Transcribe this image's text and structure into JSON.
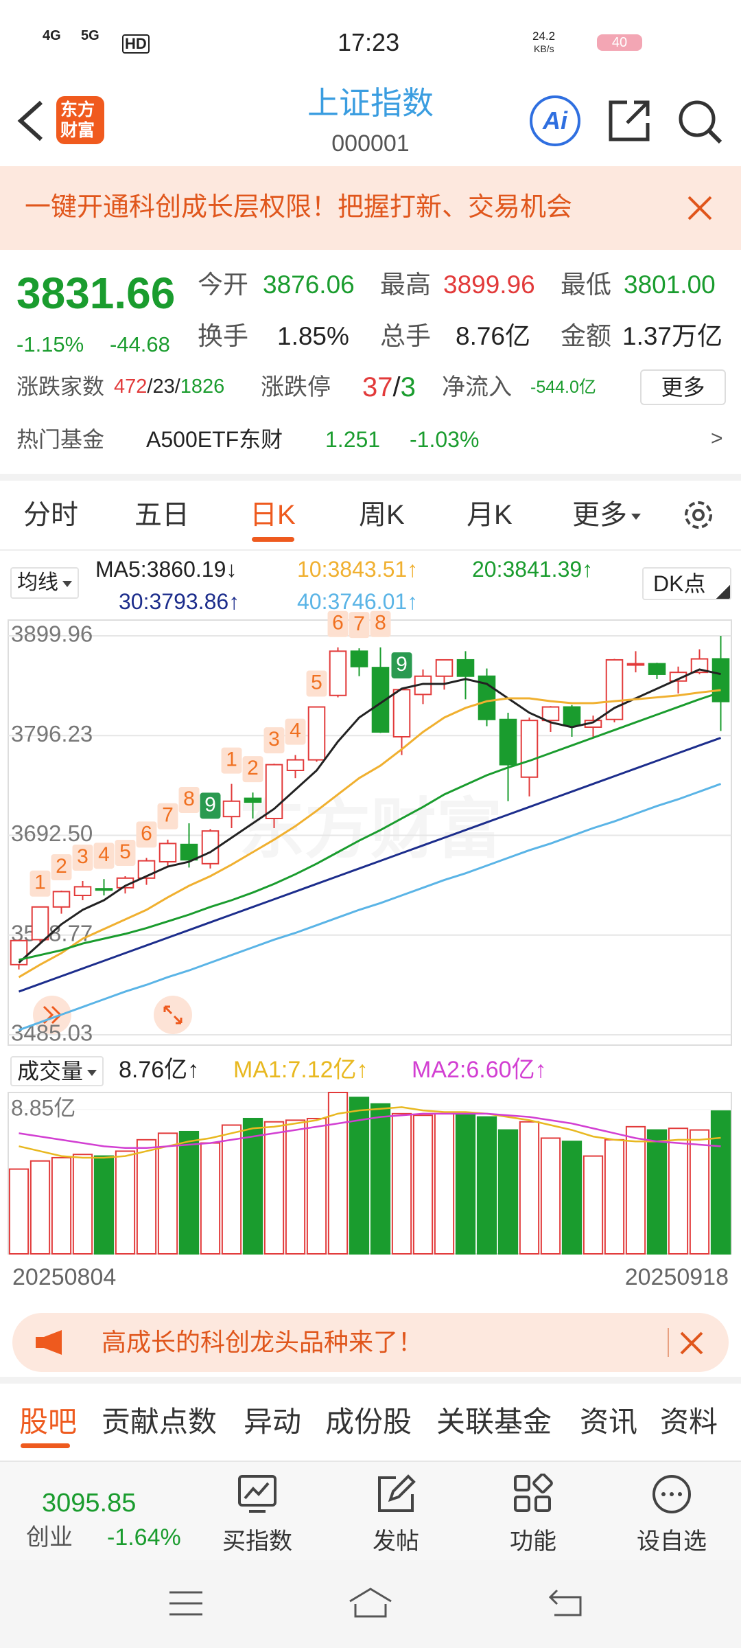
{
  "status_bar": {
    "signal_1": "4G",
    "signal_2": "5G",
    "hd": "HD",
    "time": "17:23",
    "speed": "24.2",
    "speed_unit": "KB/s",
    "battery": "40"
  },
  "header": {
    "logo_line_1": "东方",
    "logo_line_2": "财富",
    "title": "上证指数",
    "code": "000001",
    "ai": "Ai"
  },
  "banner": {
    "text": "一键开通科创成长层权限！把握打新、交易机会"
  },
  "quote": {
    "price": "3831.66",
    "change_pct": "-1.15%",
    "change": "-44.68",
    "stats": [
      {
        "label": "今开",
        "value": "3876.06"
      },
      {
        "label": "最高",
        "value": "3899.96"
      },
      {
        "label": "最低",
        "value": "3801.00"
      },
      {
        "label": "换手",
        "value": "1.85%"
      },
      {
        "label": "总手",
        "value": "8.76亿"
      },
      {
        "label": "金额",
        "value": "1.37万亿"
      }
    ],
    "breadth": {
      "label": "涨跌家数",
      "up": "472",
      "flat": "23",
      "down": "1826",
      "separator": "/"
    },
    "limit": {
      "label": "涨跌停",
      "up": "37",
      "down": "3",
      "separator": "/"
    },
    "net_inflow": {
      "label": "净流入",
      "value": "-544.0亿"
    },
    "more": "更多",
    "fund": {
      "label": "热门基金",
      "name": "A500ETF东财",
      "price": "1.251",
      "change": "-1.03%",
      "arrow": ">"
    }
  },
  "tabs": {
    "items": [
      "分时",
      "五日",
      "日K",
      "周K",
      "月K",
      "更多"
    ],
    "active": 2
  },
  "ma_legend": {
    "selector": "均线",
    "dk": "DK点"
  },
  "chart_data": [
    {
      "type": "candlestick",
      "categories": [
        "20250804",
        null,
        null,
        null,
        null,
        null,
        null,
        null,
        null,
        null,
        null,
        null,
        null,
        null,
        null,
        null,
        null,
        null,
        null,
        null,
        null,
        null,
        null,
        null,
        null,
        null,
        null,
        null,
        null,
        null,
        null,
        null,
        null,
        "20250918"
      ],
      "open": [
        3558,
        3584,
        3618,
        3630,
        3637,
        3638,
        3648,
        3665,
        3683,
        3663,
        3712,
        3731,
        3710,
        3760,
        3771,
        3838,
        3884,
        3867,
        3795,
        3839,
        3858,
        3875,
        3858,
        3813,
        3753,
        3812,
        3826,
        3805,
        3813,
        3871,
        3871,
        3853,
        3862,
        3876.06
      ],
      "high": [
        3584,
        3618,
        3635,
        3645,
        3647,
        3650,
        3669,
        3688,
        3705,
        3699,
        3746,
        3737,
        3767,
        3776,
        3826,
        3888,
        3887,
        3888,
        3845,
        3865,
        3875,
        3884,
        3866,
        3820,
        3815,
        3827,
        3828,
        3817,
        3876,
        3884,
        3872,
        3868,
        3886,
        3899.96
      ],
      "low": [
        3553,
        3580,
        3611,
        3625,
        3630,
        3632,
        3641,
        3660,
        3659,
        3658,
        3700,
        3710,
        3700,
        3752,
        3769,
        3836,
        3858,
        3799,
        3776,
        3829,
        3844,
        3834,
        3806,
        3728,
        3733,
        3800,
        3795,
        3795,
        3810,
        3862,
        3855,
        3840,
        3860,
        3801.0
      ],
      "close": [
        3583,
        3618,
        3634,
        3639,
        3636,
        3648,
        3666,
        3684,
        3667,
        3697,
        3728,
        3727,
        3766,
        3771,
        3826,
        3884,
        3868,
        3800,
        3844,
        3858,
        3875,
        3858,
        3813,
        3766,
        3812,
        3826,
        3807,
        3812,
        3875,
        3871,
        3860,
        3862,
        3876,
        3831.66
      ],
      "up_color": "#e23a3a",
      "down_color": "#1a9c2e",
      "ylim": [
        3485.03,
        3899.96
      ],
      "yticks": [
        3485.03,
        3588.77,
        {
          "value": 3692.5,
          "label": "3692.50"
        },
        3796.23,
        3899.96
      ],
      "ma": [
        {
          "label": "MA5:3860.19↓",
          "color": "#222222",
          "values": [
            3560,
            3580,
            3600,
            3615,
            3625,
            3640,
            3650,
            3660,
            3665,
            3675,
            3690,
            3705,
            3720,
            3740,
            3760,
            3790,
            3815,
            3830,
            3845,
            3850,
            3850,
            3855,
            3850,
            3835,
            3820,
            3810,
            3805,
            3810,
            3825,
            3835,
            3845,
            3855,
            3865,
            3860.19
          ]
        },
        {
          "label": "10:3843.51↑",
          "color": "#f0b030",
          "values": [
            3545,
            3558,
            3570,
            3585,
            3595,
            3605,
            3615,
            3628,
            3640,
            3650,
            3662,
            3675,
            3688,
            3702,
            3718,
            3735,
            3752,
            3765,
            3782,
            3800,
            3815,
            3825,
            3832,
            3835,
            3835,
            3832,
            3830,
            3830,
            3832,
            3834,
            3836,
            3838,
            3841,
            3843.51
          ]
        },
        {
          "label": "20:3841.39↑",
          "color": "#1a9c2e",
          "values": [
            3563,
            3568,
            3573,
            3580,
            3585,
            3590,
            3596,
            3603,
            3610,
            3618,
            3625,
            3633,
            3642,
            3652,
            3663,
            3675,
            3687,
            3698,
            3710,
            3722,
            3735,
            3745,
            3755,
            3763,
            3770,
            3778,
            3786,
            3794,
            3802,
            3810,
            3818,
            3826,
            3834,
            3841.39
          ]
        },
        {
          "label": "30:3793.86↑",
          "color": "#1c2d8c",
          "values": [
            3530,
            3538,
            3546,
            3554,
            3562,
            3570,
            3578,
            3586,
            3594,
            3602,
            3610,
            3618,
            3626,
            3634,
            3642,
            3650,
            3658,
            3666,
            3674,
            3682,
            3690,
            3698,
            3706,
            3714,
            3722,
            3730,
            3738,
            3746,
            3754,
            3762,
            3770,
            3778,
            3786,
            3793.86
          ]
        },
        {
          "label": "40:3746.01↑",
          "color": "#5ab4e6",
          "values": [
            3490,
            3498,
            3506,
            3514,
            3522,
            3530,
            3537,
            3545,
            3552,
            3560,
            3568,
            3576,
            3584,
            3591,
            3599,
            3607,
            3615,
            3622,
            3630,
            3638,
            3646,
            3653,
            3661,
            3669,
            3677,
            3684,
            3692,
            3700,
            3707,
            3715,
            3723,
            3730,
            3738,
            3746.01
          ]
        }
      ],
      "annotations": [
        {
          "index": 1,
          "label": "1"
        },
        {
          "index": 2,
          "label": "2"
        },
        {
          "index": 3,
          "label": "3"
        },
        {
          "index": 4,
          "label": "4"
        },
        {
          "index": 5,
          "label": "5"
        },
        {
          "index": 6,
          "label": "6"
        },
        {
          "index": 7,
          "label": "7"
        },
        {
          "index": 8,
          "label": "8"
        },
        {
          "index": 9,
          "label": "9"
        },
        {
          "index": 10,
          "label": "1"
        },
        {
          "index": 11,
          "label": "2"
        },
        {
          "index": 12,
          "label": "3"
        },
        {
          "index": 13,
          "label": "4"
        },
        {
          "index": 14,
          "label": "5"
        },
        {
          "index": 15,
          "label": "6"
        },
        {
          "index": 16,
          "label": "7"
        },
        {
          "index": 17,
          "label": "8"
        },
        {
          "index": 18,
          "label": "9"
        }
      ]
    },
    {
      "type": "bar",
      "title": "成交量",
      "value_label": "8.76亿↑",
      "values": [
        5.2,
        5.7,
        5.9,
        6.1,
        6.0,
        6.3,
        7.0,
        7.4,
        7.5,
        6.8,
        7.9,
        8.3,
        8.1,
        8.2,
        8.3,
        9.9,
        9.6,
        9.2,
        8.6,
        8.5,
        8.6,
        8.6,
        8.4,
        7.6,
        8.1,
        7.1,
        6.9,
        6.0,
        7.0,
        7.8,
        7.6,
        7.7,
        7.6,
        8.76
      ],
      "ylim": [
        0,
        9.9
      ],
      "yticks": [
        {
          "value": 8.85,
          "label": "8.85亿"
        }
      ],
      "ma": [
        {
          "label": "MA1:7.12亿↑",
          "color": "#e8b820",
          "values": [
            6.6,
            6.3,
            6.0,
            5.9,
            5.9,
            6.0,
            6.3,
            6.6,
            6.9,
            7.1,
            7.4,
            7.7,
            7.8,
            8.0,
            8.2,
            8.6,
            8.8,
            8.9,
            9.0,
            8.8,
            8.7,
            8.7,
            8.6,
            8.4,
            8.2,
            7.9,
            7.6,
            7.2,
            7.0,
            6.9,
            6.9,
            7.0,
            7.0,
            7.12
          ]
        },
        {
          "label": "MA2:6.60亿↑",
          "color": "#d23fd2",
          "values": [
            7.4,
            7.2,
            7.0,
            6.8,
            6.6,
            6.5,
            6.5,
            6.6,
            6.7,
            6.8,
            7.0,
            7.2,
            7.4,
            7.6,
            7.8,
            8.0,
            8.2,
            8.4,
            8.5,
            8.6,
            8.6,
            8.6,
            8.6,
            8.5,
            8.4,
            8.2,
            8.0,
            7.7,
            7.4,
            7.1,
            6.9,
            6.8,
            6.7,
            6.6
          ]
        }
      ]
    }
  ],
  "watermark": "东方财富",
  "promo": {
    "text": "高成长的科创龙头品种来了！"
  },
  "bottom_tabs": {
    "items": [
      "股吧",
      "贡献点数",
      "异动",
      "成份股",
      "关联基金",
      "资讯",
      "资料"
    ],
    "active": 0
  },
  "toolbar": {
    "index_value": "3095.85",
    "index_name": "创业",
    "index_change": "-1.64%",
    "items": [
      "买指数",
      "发帖",
      "功能",
      "设自选"
    ]
  }
}
